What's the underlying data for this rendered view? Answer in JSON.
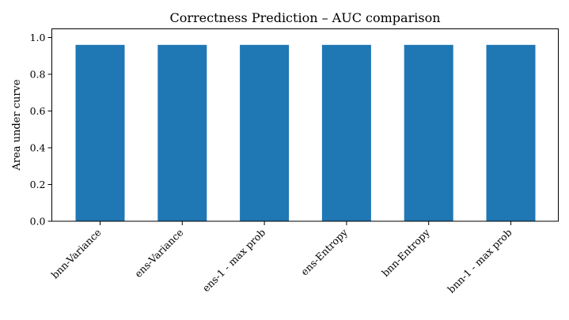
{
  "chart_data": {
    "type": "bar",
    "title": "Correctness Prediction – AUC comparison",
    "xlabel": "",
    "ylabel": "Area under curve",
    "categories": [
      "bnn-Variance",
      "ens-Variance",
      "ens-1 - max prob",
      "ens-Entropy",
      "bnn-Entropy",
      "bnn-1 - max prob"
    ],
    "values": [
      0.96,
      0.96,
      0.96,
      0.96,
      0.96,
      0.96
    ],
    "ylim": [
      0,
      1.0
    ],
    "yticks": [
      "0.0",
      "0.2",
      "0.4",
      "0.6",
      "0.8",
      "1.0"
    ],
    "grid": false,
    "legend": "none",
    "bar_color": "#1f77b4"
  }
}
